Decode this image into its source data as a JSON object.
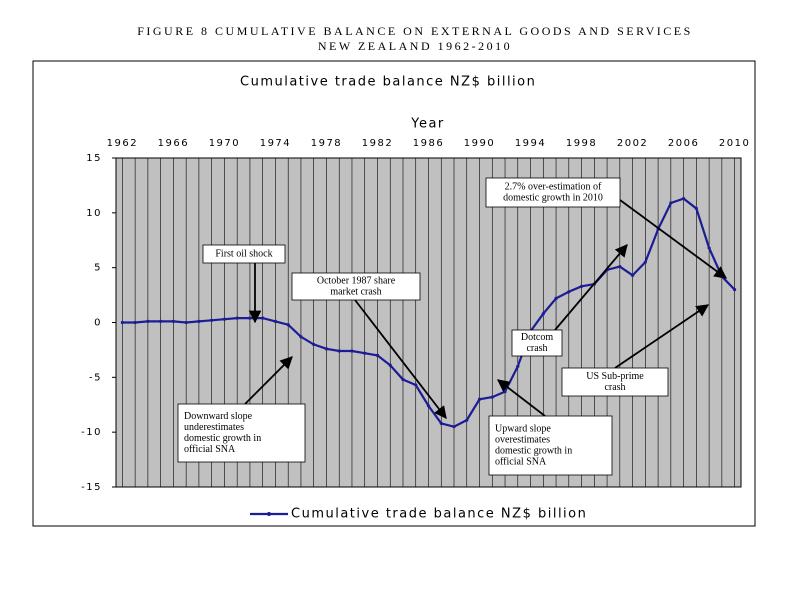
{
  "chart_data": {
    "type": "line",
    "title": "FIGURE 8 CUMULATIVE BALANCE ON EXTERNAL GOODS AND SERVICES",
    "subtitle": "NEW ZEALAND 1962-2010",
    "inner_title": "Cumulative trade balance NZ$ billion",
    "xlabel": "Year",
    "x": [
      1962,
      1963,
      1964,
      1965,
      1966,
      1967,
      1968,
      1969,
      1970,
      1971,
      1972,
      1973,
      1974,
      1975,
      1976,
      1977,
      1978,
      1979,
      1980,
      1981,
      1982,
      1983,
      1984,
      1985,
      1986,
      1987,
      1988,
      1989,
      1990,
      1991,
      1992,
      1993,
      1994,
      1995,
      1996,
      1997,
      1998,
      1999,
      2000,
      2001,
      2002,
      2003,
      2004,
      2005,
      2006,
      2007,
      2008,
      2009,
      2010
    ],
    "series": [
      {
        "name": "Cumulative trade balance NZ$ billion",
        "color": "#1c1c96",
        "values": [
          0,
          0,
          0.1,
          0.1,
          0.1,
          0,
          0.1,
          0.2,
          0.3,
          0.4,
          0.4,
          0.4,
          0.1,
          -0.2,
          -1.3,
          -2.0,
          -2.4,
          -2.6,
          -2.6,
          -2.8,
          -3.0,
          -3.9,
          -5.2,
          -5.7,
          -7.6,
          -9.2,
          -9.5,
          -8.9,
          -7.0,
          -6.8,
          -6.3,
          -4.0,
          -0.8,
          0.8,
          2.2,
          2.8,
          3.3,
          3.5,
          4.8,
          5.1,
          4.3,
          5.5,
          8.5,
          10.9,
          11.3,
          10.4,
          6.8,
          4.2,
          3.0
        ]
      }
    ],
    "xlim": [
      1961.5,
      2010.5
    ],
    "xticks": [
      1962,
      1966,
      1970,
      1974,
      1978,
      1982,
      1986,
      1990,
      1994,
      1998,
      2002,
      2006,
      2010
    ],
    "ylim": [
      -15,
      15
    ],
    "yticks": [
      15,
      10,
      5,
      0,
      -5,
      -10,
      -15
    ],
    "grid": true,
    "legend": "bottom",
    "annotations": [
      {
        "lines": [
          "First oil shock"
        ]
      },
      {
        "lines": [
          "October 1987 share",
          "market crash"
        ]
      },
      {
        "lines": [
          "2.7% over-estimation of",
          "domestic growth in 2010"
        ]
      },
      {
        "lines": [
          "Dotcom",
          "crash"
        ]
      },
      {
        "lines": [
          "US Sub-prime",
          "crash"
        ]
      },
      {
        "lines": [
          "Downward slope",
          "underestimates",
          "domestic growth in",
          "official SNA"
        ]
      },
      {
        "lines": [
          "Upward slope",
          "overestimates",
          "domestic growth in",
          "official SNA"
        ]
      }
    ]
  }
}
